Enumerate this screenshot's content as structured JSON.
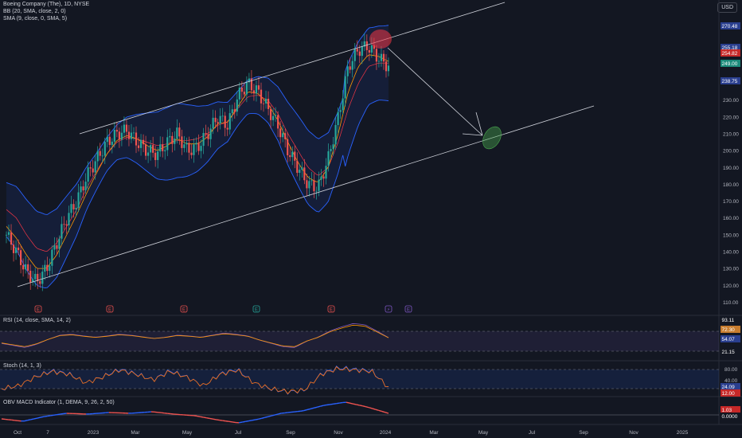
{
  "header": {
    "legend": [
      "Boeing Company (The), 1D, NYSE",
      "BB (20, SMA, close, 2, 0)",
      "SMA (9, close, 0, SMA, 5)"
    ],
    "currency": "USD"
  },
  "price_axis": {
    "ticks": [
      "110.00",
      "120.00",
      "130.00",
      "140.00",
      "150.00",
      "160.00",
      "170.00",
      "180.00",
      "190.00",
      "200.00",
      "210.00",
      "220.00",
      "230.00"
    ],
    "badges": [
      {
        "text": "270.48",
        "color": "#2a3f8f"
      },
      {
        "text": "255.18",
        "color": "#2a3f8f"
      },
      {
        "text": "254.82",
        "color": "#c62828"
      },
      {
        "text": "249.00",
        "color": "#1b8a7a"
      },
      {
        "text": "238.75",
        "color": "#2a3f8f"
      }
    ]
  },
  "indicators": {
    "rsi": {
      "label": "RSI (14, close, SMA, 14, 2)",
      "badges": [
        {
          "text": "93.11",
          "color": "#131722"
        },
        {
          "text": "72.30",
          "color": "#c77c2e"
        },
        {
          "text": "54.07",
          "color": "#2a3f8f"
        },
        {
          "text": "21.15",
          "color": "#131722"
        }
      ]
    },
    "stoch": {
      "label": "Stoch (14, 1, 3)",
      "ticks": [
        "80.00",
        "40.00"
      ],
      "badges": [
        {
          "text": "24.09",
          "color": "#2a3f8f"
        },
        {
          "text": "12.00",
          "color": "#c62828"
        }
      ]
    },
    "obv": {
      "label": "OBV MACD Indicator (1, DEMA, 9, 26, 2, 50)",
      "badges": [
        {
          "text": "1.03",
          "color": "#c62828"
        },
        {
          "text": "0.0000",
          "color": "#131722"
        }
      ]
    }
  },
  "time_axis": {
    "labels": [
      "Oct",
      "7",
      "2023",
      "Mar",
      "May",
      "Jul",
      "Sep",
      "Nov",
      "2024",
      "Mar",
      "May",
      "Jul",
      "Sep",
      "Nov",
      "2025"
    ]
  },
  "events": [
    "E",
    "E",
    "E",
    "E",
    "E",
    "⚡",
    "E"
  ],
  "colors": {
    "up": "#26a69a",
    "down": "#ef5350",
    "bb": "#2962ff",
    "sma": "#ff9800",
    "channel": "#d1d4dc",
    "rsi": "#7e57c2"
  },
  "chart_data": {
    "type": "candlestick",
    "title": "Boeing Company (The), 1D, NYSE",
    "x_ticks": [
      "Oct",
      "7",
      "2023",
      "Mar",
      "May",
      "Jul",
      "Sep",
      "Nov",
      "2024"
    ],
    "ylim": [
      105,
      280
    ],
    "series": [
      {
        "name": "price",
        "values": [
          150,
          140,
          128,
          122,
          130,
          145,
          160,
          170,
          185,
          195,
          205,
          210,
          212,
          205,
          200,
          198,
          205,
          210,
          200,
          202,
          210,
          220,
          215,
          232,
          240,
          235,
          225,
          215,
          200,
          190,
          180,
          178,
          195,
          220,
          250,
          260,
          262,
          255,
          250
        ]
      },
      {
        "name": "BB (20, SMA, close, 2, 0)",
        "values": [
          165,
          160,
          150,
          142,
          140,
          145,
          155,
          165,
          178,
          188,
          198,
          205,
          208,
          207,
          205,
          203,
          204,
          206,
          206,
          207,
          210,
          215,
          217,
          225,
          232,
          233,
          230,
          222,
          210,
          200,
          190,
          185,
          190,
          205,
          225,
          240,
          250,
          252,
          252
        ]
      },
      {
        "name": "SMA (9, close, 0, SMA, 5)",
        "values": [
          155,
          148,
          138,
          130,
          130,
          138,
          150,
          162,
          175,
          187,
          198,
          206,
          209,
          207,
          203,
          200,
          203,
          207,
          204,
          204,
          208,
          216,
          217,
          226,
          235,
          234,
          228,
          218,
          205,
          193,
          184,
          181,
          190,
          210,
          235,
          250,
          257,
          256,
          253
        ]
      }
    ],
    "channel": {
      "upper": [
        [
          0.0,
          212
        ],
        [
          1.0,
          265
        ]
      ],
      "lower": [
        [
          0.0,
          125
        ],
        [
          1.0,
          215
        ]
      ]
    },
    "annotation": {
      "arrow_from": "270.48",
      "arrow_to": "~206",
      "from_marker": "red circle",
      "to_marker": "green ellipse"
    },
    "indicators": [
      {
        "name": "RSI",
        "ylim": [
          0,
          100
        ],
        "values": [
          40,
          35,
          30,
          38,
          50,
          60,
          62,
          58,
          55,
          58,
          62,
          60,
          56,
          52,
          55,
          60,
          58,
          55,
          60,
          65,
          62,
          58,
          48,
          40,
          32,
          30,
          45,
          55,
          70,
          80,
          88,
          85,
          70,
          54
        ]
      },
      {
        "name": "Stoch",
        "ylim": [
          0,
          100
        ],
        "values": [
          20,
          30,
          60,
          80,
          70,
          40,
          60,
          85,
          70,
          50,
          80,
          60,
          30,
          70,
          85,
          40,
          20,
          10,
          15,
          70,
          90,
          85,
          80,
          24
        ]
      },
      {
        "name": "OBV MACD",
        "values": [
          -0.5,
          -0.8,
          -0.2,
          0.2,
          0.1,
          0.3,
          0.2,
          0.4,
          0.1,
          -0.1,
          -0.6,
          -1.0,
          -0.5,
          0.2,
          0.5,
          1.2,
          1.6,
          1.0,
          0.2
        ]
      }
    ]
  }
}
